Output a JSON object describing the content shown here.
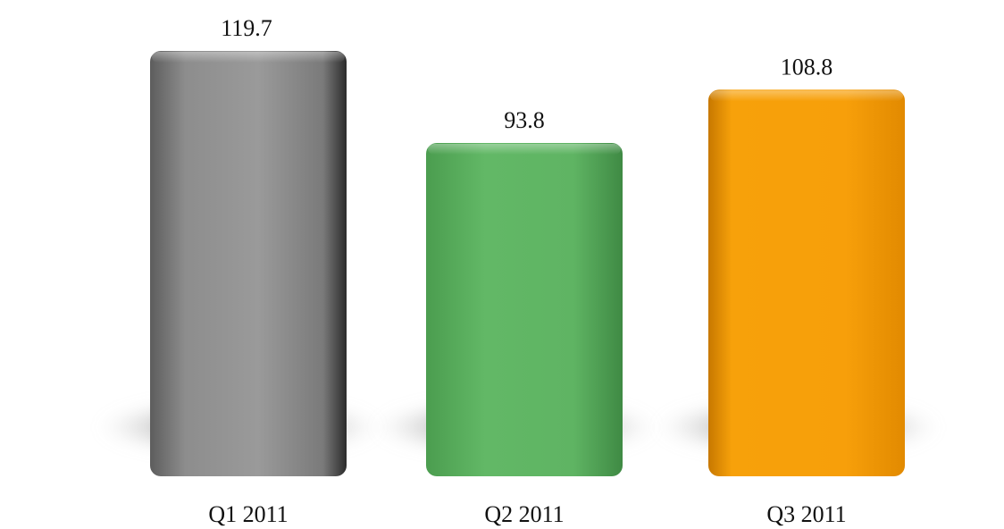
{
  "chart_data": {
    "type": "bar",
    "categories": [
      "Q1 2011",
      "Q2 2011",
      "Q3 2011"
    ],
    "values": [
      119.7,
      93.8,
      108.8
    ],
    "value_labels": [
      "119.7",
      "93.8",
      "108.8"
    ],
    "colors": [
      "#8a8a8a",
      "#62b866",
      "#f7a10a"
    ],
    "title": "",
    "xlabel": "",
    "ylabel": "",
    "ylim": [
      0,
      119.7
    ],
    "grid": false,
    "legend": "none"
  }
}
